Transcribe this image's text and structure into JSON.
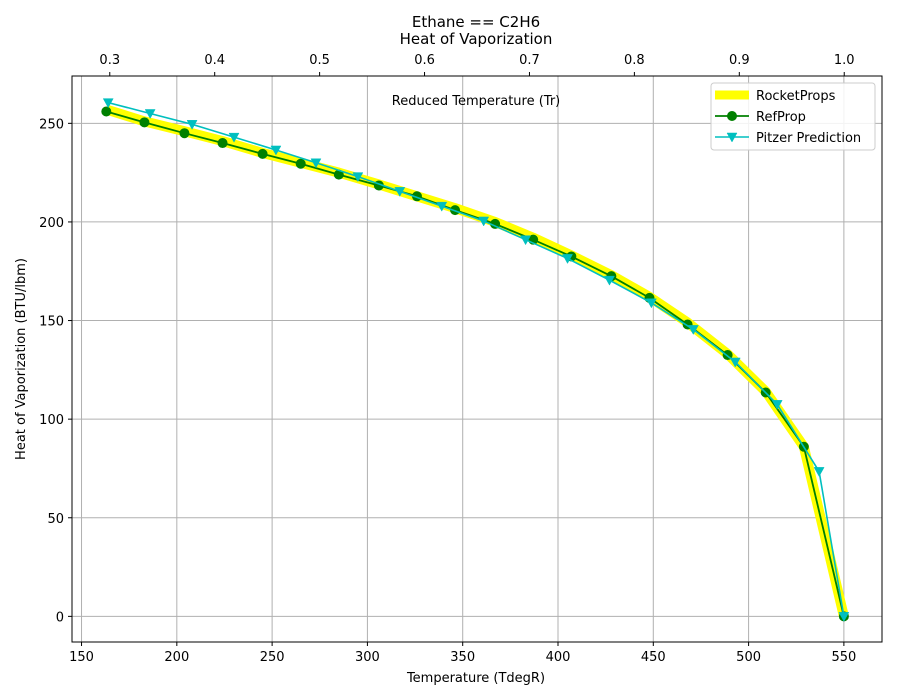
{
  "chart_data": {
    "type": "line",
    "title": "Ethane == C2H6",
    "subtitle": "Heat of Vaporization",
    "xlabel": "Temperature (TdegR)",
    "ylabel": "Heat of Vaporization (BTU/lbm)",
    "top_xlabel": "Reduced Temperature (Tr)",
    "xlim": [
      145,
      570
    ],
    "ylim": [
      -13,
      274
    ],
    "xticks": [
      150,
      200,
      250,
      300,
      350,
      400,
      450,
      500,
      550
    ],
    "yticks": [
      0,
      50,
      100,
      150,
      200,
      250
    ],
    "top_xlim": [
      0.264,
      1.036
    ],
    "top_xticks": [
      "0.3",
      "0.4",
      "0.5",
      "0.6",
      "0.7",
      "0.8",
      "0.9",
      "1.0"
    ],
    "grid": true,
    "legend_position": "top-right",
    "series": [
      {
        "name": "RocketProps",
        "color": "#ffff00",
        "marker": "none",
        "x": [
          163,
          183,
          204,
          224,
          245,
          265,
          285,
          306,
          326,
          346,
          367,
          387,
          407,
          428,
          448,
          468,
          489,
          509,
          529,
          550
        ],
        "y": [
          257,
          251,
          246,
          241,
          235,
          230,
          225,
          219,
          213,
          207,
          200,
          192,
          183,
          173,
          162,
          149,
          133,
          114,
          86,
          0
        ]
      },
      {
        "name": "RefProp",
        "color": "#008000",
        "marker": "circle",
        "x": [
          163,
          183,
          204,
          224,
          245,
          265,
          285,
          306,
          326,
          346,
          367,
          387,
          407,
          428,
          448,
          468,
          489,
          509,
          529,
          550
        ],
        "y": [
          256,
          250.5,
          245,
          240,
          234.5,
          229.5,
          224,
          218.5,
          213,
          206,
          199,
          191,
          182.5,
          172.5,
          161.5,
          148,
          132.5,
          113.5,
          86,
          0
        ]
      },
      {
        "name": "Pitzer Prediction",
        "color": "#00bfbf",
        "marker": "triangle-down",
        "x": [
          164,
          186,
          208,
          230,
          252,
          273,
          295,
          317,
          339,
          361,
          383,
          405,
          427,
          449,
          471,
          493,
          515,
          537,
          550
        ],
        "y": [
          260.5,
          255,
          249.5,
          243,
          236.5,
          230,
          223,
          215.5,
          208,
          200.5,
          191,
          181.5,
          170.5,
          159,
          145.5,
          129,
          107.5,
          73.5,
          0
        ]
      }
    ]
  }
}
